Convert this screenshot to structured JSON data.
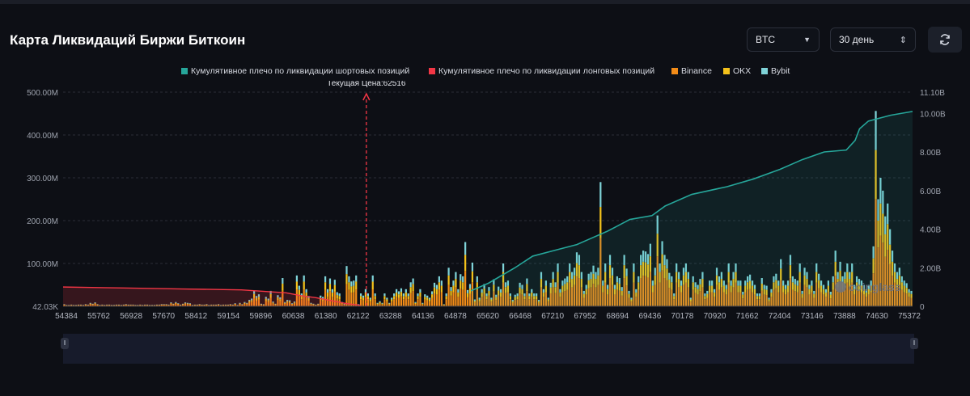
{
  "title": "Карта Ликвидаций Биржи Биткоин",
  "controls": {
    "coin": "BTC",
    "period": "30 день"
  },
  "colors": {
    "short": "#26a69a",
    "long": "#f23645",
    "binance": "#f28c18",
    "okx": "#f4c21b",
    "bybit": "#7fd3d8"
  },
  "chart_data": {
    "type": "bar",
    "current_price_label": "Текущая Цена:62516",
    "current_price": 62516,
    "legend": [
      {
        "name": "Кумулятивное плечо по ликвидации шортовых позиций",
        "color": "#26a69a"
      },
      {
        "name": "Кумулятивное плечо по ликвидации лонговых позиций",
        "color": "#f23645"
      },
      {
        "name": "Binance",
        "color": "#f28c18"
      },
      {
        "name": "OKX",
        "color": "#f4c21b"
      },
      {
        "name": "Bybit",
        "color": "#7fd3d8"
      }
    ],
    "x_ticks": [
      "54384",
      "55762",
      "56928",
      "57670",
      "58412",
      "59154",
      "59896",
      "60638",
      "61380",
      "62122",
      "63288",
      "64136",
      "64878",
      "65620",
      "66468",
      "67210",
      "67952",
      "68694",
      "69436",
      "70178",
      "70920",
      "71662",
      "72404",
      "73146",
      "73888",
      "74630",
      "75372"
    ],
    "y_left_ticks": [
      "42.03K",
      "100.00M",
      "200.00M",
      "300.00M",
      "400.00M",
      "500.00M"
    ],
    "y_right_ticks": [
      "0",
      "2.00B",
      "4.00B",
      "6.00B",
      "8.00B",
      "10.00B",
      "11.10B"
    ],
    "y_left_range": [
      0,
      500
    ],
    "y_right_range": [
      0,
      11.1
    ],
    "bars": [
      5,
      3,
      3,
      4,
      3,
      3,
      4,
      4,
      3,
      5,
      4,
      8,
      6,
      9,
      5,
      3,
      4,
      3,
      4,
      4,
      3,
      3,
      4,
      4,
      3,
      4,
      5,
      4,
      4,
      4,
      3,
      3,
      4,
      3,
      4,
      4,
      3,
      3,
      3,
      4,
      4,
      5,
      5,
      5,
      4,
      9,
      6,
      10,
      7,
      4,
      6,
      9,
      8,
      7,
      3,
      4,
      4,
      5,
      4,
      4,
      5,
      3,
      4,
      4,
      4,
      5,
      3,
      4,
      4,
      4,
      5,
      4,
      7,
      3,
      8,
      5,
      10,
      8,
      15,
      18,
      36,
      24,
      28,
      6,
      5,
      22,
      18,
      36,
      11,
      6,
      26,
      21,
      66,
      10,
      15,
      14,
      7,
      11,
      72,
      48,
      30,
      72,
      40,
      24,
      8,
      6,
      4,
      6,
      25,
      22,
      70,
      40,
      65,
      40,
      62,
      33,
      30,
      10,
      6,
      94,
      70,
      58,
      60,
      72,
      5,
      30,
      25,
      40,
      30,
      20,
      72,
      30,
      8,
      12,
      8,
      30,
      20,
      8,
      20,
      30,
      40,
      35,
      42,
      30,
      40,
      30,
      56,
      65,
      10,
      30,
      40,
      8,
      28,
      25,
      20,
      35,
      55,
      50,
      70,
      60,
      5,
      30,
      90,
      45,
      60,
      80,
      40,
      75,
      70,
      150,
      38,
      52,
      102,
      16,
      70,
      20,
      40,
      52,
      30,
      45,
      20,
      63,
      27,
      46,
      40,
      100,
      56,
      60,
      30,
      15,
      27,
      30,
      55,
      50,
      30,
      65,
      30,
      40,
      30,
      30,
      15,
      80,
      40,
      60,
      20,
      55,
      80,
      56,
      100,
      40,
      60,
      65,
      70,
      100,
      80,
      90,
      126,
      120,
      80,
      36,
      50,
      76,
      80,
      95,
      80,
      90,
      290,
      60,
      100,
      50,
      120,
      90,
      50,
      70,
      66,
      45,
      120,
      88,
      36,
      20,
      100,
      40,
      70,
      120,
      130,
      128,
      122,
      146,
      60,
      90,
      212,
      100,
      152,
      120,
      110,
      78,
      70,
      30,
      100,
      80,
      60,
      90,
      100,
      80,
      20,
      70,
      56,
      50,
      64,
      80,
      30,
      36,
      60,
      60,
      40,
      90,
      70,
      80,
      60,
      50,
      100,
      60,
      80,
      100,
      60,
      60,
      34,
      60,
      70,
      74,
      60,
      50,
      30,
      30,
      66,
      50,
      48,
      20,
      40,
      70,
      76,
      60,
      110,
      60,
      50,
      60,
      120,
      70,
      64,
      60,
      100,
      36,
      90,
      80,
      50,
      60,
      36,
      100,
      76,
      60,
      50,
      40,
      60,
      34,
      70,
      130,
      80,
      104,
      70,
      80,
      100,
      80,
      100,
      50,
      70,
      64,
      60,
      50,
      40,
      50,
      60,
      140,
      456,
      250,
      300,
      270,
      210,
      240,
      180,
      130,
      100,
      80,
      90,
      70,
      60,
      54,
      40,
      36
    ],
    "short_curve": [
      [
        0,
        0.8
      ],
      [
        0.04,
        1.2
      ],
      [
        0.1,
        2.0
      ],
      [
        0.14,
        2.6
      ],
      [
        0.19,
        2.9
      ],
      [
        0.24,
        3.2
      ],
      [
        0.27,
        3.5
      ],
      [
        0.31,
        3.9
      ],
      [
        0.36,
        4.5
      ],
      [
        0.41,
        4.7
      ],
      [
        0.44,
        5.2
      ],
      [
        0.5,
        5.8
      ],
      [
        0.58,
        6.2
      ],
      [
        0.64,
        6.6
      ],
      [
        0.7,
        7.1
      ],
      [
        0.75,
        7.6
      ],
      [
        0.8,
        8.0
      ],
      [
        0.85,
        8.1
      ],
      [
        0.87,
        8.6
      ],
      [
        0.88,
        9.2
      ],
      [
        0.9,
        9.6
      ],
      [
        0.95,
        9.9
      ],
      [
        1.0,
        10.1
      ]
    ],
    "long_curve": [
      [
        0,
        1.0
      ],
      [
        0.2,
        0.95
      ],
      [
        0.4,
        0.9
      ],
      [
        0.6,
        0.85
      ],
      [
        0.75,
        0.7
      ],
      [
        0.8,
        0.55
      ],
      [
        0.85,
        0.45
      ],
      [
        0.9,
        0.3
      ],
      [
        0.95,
        0.15
      ],
      [
        1.0,
        0.05
      ]
    ]
  }
}
